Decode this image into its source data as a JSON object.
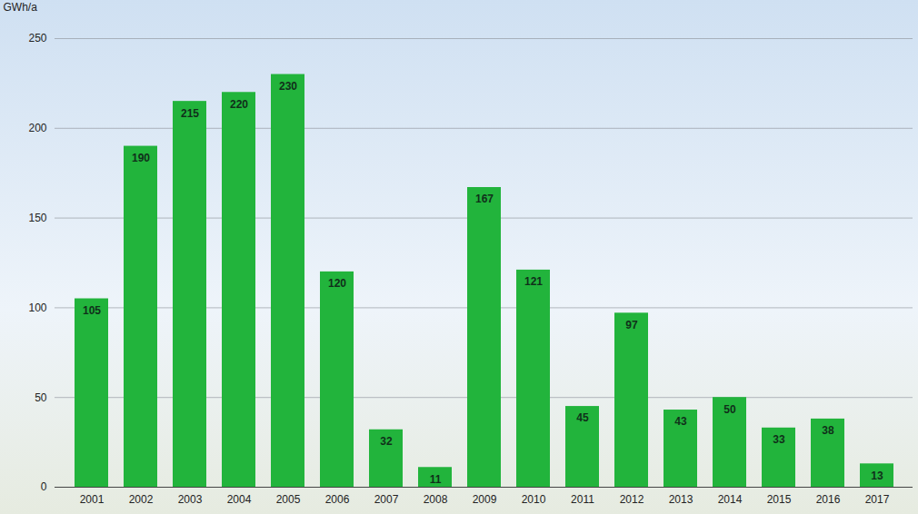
{
  "chart_data": {
    "type": "bar",
    "y_label": "GWh/a",
    "categories": [
      "2001",
      "2002",
      "2003",
      "2004",
      "2005",
      "2006",
      "2007",
      "2008",
      "2009",
      "2010",
      "2011",
      "2012",
      "2013",
      "2014",
      "2015",
      "2016",
      "2017"
    ],
    "values": [
      105,
      190,
      215,
      220,
      230,
      120,
      32,
      11,
      167,
      121,
      45,
      97,
      43,
      50,
      33,
      38,
      13
    ],
    "color": "#22b43c",
    "ylim": [
      0,
      250
    ],
    "yticks": [
      0,
      50,
      100,
      150,
      200,
      250
    ],
    "grid": true,
    "data_labels": true
  }
}
